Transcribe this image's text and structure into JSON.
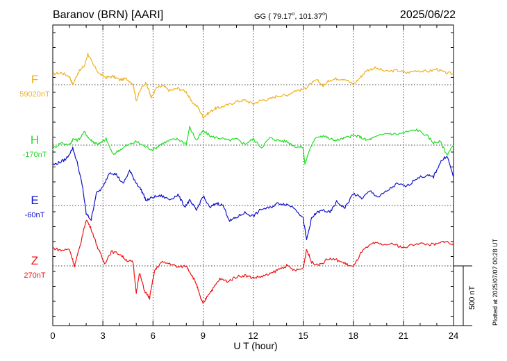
{
  "header": {
    "station": "Baranov (BRN)  [AARI]",
    "coords_prefix": "GG ( 79.17",
    "coords_mid": ", 101.37",
    "coords_suffix": ")",
    "degree_mark": "o",
    "date": "2025/06/22"
  },
  "footer": {
    "plotted": "Plotted at 2025/07/07 00:28 UT"
  },
  "colors": {
    "F": "#f0b020",
    "H": "#22dd22",
    "E": "#1010cc",
    "Z": "#ee1111",
    "axis": "#000000"
  },
  "chart_data": {
    "type": "line",
    "xlabel": "U T (hour)",
    "xlim": [
      0,
      24
    ],
    "x_ticks": [
      "0",
      "3",
      "6",
      "9",
      "12",
      "15",
      "18",
      "21",
      "24"
    ],
    "grid": true,
    "scale_bar": {
      "label": "500 nT",
      "value": 500
    },
    "series": [
      {
        "name": "F",
        "baseline_label": "59020nT",
        "baseline": 59020,
        "color": "#f0b020",
        "x": [
          0,
          0.5,
          1,
          1.2,
          1.5,
          1.9,
          2.1,
          2.4,
          2.8,
          3.2,
          3.6,
          4,
          4.4,
          4.8,
          5,
          5.3,
          5.6,
          5.9,
          6.2,
          6.6,
          7,
          7.5,
          8,
          8.3,
          8.7,
          9,
          9.3,
          9.7,
          10,
          10.5,
          11,
          11.5,
          12,
          12.5,
          13,
          13.5,
          14,
          14.5,
          15,
          15.4,
          15.8,
          16.2,
          16.6,
          17,
          17.5,
          18,
          18.4,
          18.8,
          19.3,
          20,
          20.6,
          21.2,
          21.8,
          22.4,
          23,
          23.5,
          24
        ],
        "y": [
          59110,
          59120,
          59090,
          59020,
          59120,
          59180,
          59280,
          59190,
          59110,
          59080,
          59090,
          59060,
          59070,
          59030,
          58890,
          58990,
          59040,
          58910,
          58990,
          59010,
          58970,
          58990,
          58960,
          58880,
          58830,
          58750,
          58780,
          58820,
          58830,
          58850,
          58880,
          58890,
          58860,
          58890,
          58900,
          58930,
          58930,
          58970,
          58980,
          59020,
          59060,
          59010,
          59060,
          59070,
          59070,
          59020,
          59080,
          59140,
          59160,
          59130,
          59140,
          59120,
          59140,
          59130,
          59150,
          59120,
          59110
        ]
      },
      {
        "name": "H",
        "baseline_label": "-170nT",
        "baseline": -170,
        "color": "#22dd22",
        "x": [
          0,
          0.5,
          1,
          1.2,
          1.5,
          1.9,
          2.2,
          2.5,
          2.8,
          3.2,
          3.6,
          4,
          4.5,
          5,
          5.5,
          6,
          6.5,
          7,
          7.5,
          8,
          8.2,
          8.6,
          9,
          9.5,
          10,
          10.5,
          11,
          11.5,
          12,
          12.5,
          13,
          13.5,
          14,
          14.5,
          15,
          15.1,
          15.4,
          15.8,
          16.2,
          16.6,
          17,
          17.5,
          18,
          18.4,
          18.8,
          19.2,
          20,
          20.6,
          21.2,
          21.8,
          22.4,
          22.8,
          23.2,
          23.6,
          24
        ],
        "y": [
          -200,
          -150,
          -170,
          -120,
          -130,
          -60,
          -120,
          -150,
          -160,
          -120,
          -250,
          -210,
          -170,
          -140,
          -180,
          -210,
          -160,
          -130,
          -120,
          -160,
          -20,
          -130,
          -50,
          -100,
          -110,
          -130,
          -120,
          -160,
          -120,
          -190,
          -110,
          -130,
          -140,
          -180,
          -190,
          -330,
          -200,
          -100,
          -90,
          -120,
          -130,
          -110,
          -90,
          -100,
          -130,
          -110,
          -70,
          -80,
          -60,
          -40,
          -90,
          -150,
          -140,
          -250,
          -170
        ]
      },
      {
        "name": "E",
        "baseline_label": "-60nT",
        "baseline": -60,
        "color": "#1010cc",
        "x": [
          0,
          0.4,
          0.8,
          1.2,
          1.5,
          1.8,
          2,
          2.3,
          2.6,
          3,
          3.4,
          3.8,
          4.2,
          4.6,
          5,
          5.3,
          5.6,
          6,
          6.5,
          7,
          7.5,
          7.9,
          8.2,
          8.6,
          9,
          9.4,
          9.8,
          10.2,
          10.6,
          11,
          11.5,
          12,
          12.5,
          13,
          13.5,
          14,
          14.5,
          15,
          15.2,
          15.5,
          15.8,
          16.2,
          16.6,
          17,
          17.5,
          18,
          18.5,
          19,
          19.5,
          20,
          20.6,
          21.2,
          21.8,
          22.4,
          22.8,
          23.2,
          23.6,
          24
        ],
        "y": [
          280,
          300,
          330,
          420,
          280,
          80,
          -130,
          -180,
          40,
          90,
          220,
          200,
          120,
          230,
          130,
          70,
          -20,
          10,
          20,
          -10,
          30,
          -70,
          -20,
          -100,
          20,
          -80,
          -40,
          -60,
          -190,
          -160,
          -120,
          -150,
          -90,
          -80,
          -40,
          -50,
          -80,
          -170,
          -350,
          -170,
          -120,
          -100,
          -120,
          -30,
          -80,
          40,
          0,
          60,
          10,
          60,
          120,
          100,
          170,
          190,
          180,
          300,
          360,
          180
        ]
      },
      {
        "name": "Z",
        "baseline_label": "270nT",
        "baseline": 270,
        "color": "#ee1111",
        "x": [
          0,
          0.5,
          1,
          1.3,
          1.6,
          2,
          2.3,
          2.7,
          3.1,
          3.5,
          4,
          4.4,
          4.8,
          5,
          5.2,
          5.5,
          5.8,
          6.1,
          6.5,
          7,
          7.5,
          8,
          8.3,
          8.6,
          8.8,
          9,
          9.3,
          9.6,
          10,
          10.5,
          11,
          11.5,
          12,
          12.5,
          13,
          13.5,
          14,
          14.5,
          15,
          15.2,
          15.5,
          16,
          16.5,
          17,
          17.5,
          18,
          18.5,
          19.2,
          19.7,
          20.5,
          21,
          21.8,
          22.5,
          23,
          23.5,
          24
        ],
        "y": [
          420,
          400,
          410,
          270,
          420,
          660,
          580,
          420,
          290,
          390,
          370,
          320,
          300,
          50,
          210,
          60,
          0,
          230,
          300,
          290,
          260,
          270,
          200,
          120,
          20,
          -50,
          30,
          80,
          160,
          140,
          180,
          190,
          170,
          180,
          200,
          240,
          270,
          230,
          250,
          410,
          300,
          280,
          330,
          320,
          290,
          260,
          390,
          460,
          450,
          450,
          420,
          460,
          450,
          450,
          480,
          440
        ]
      }
    ],
    "vertical_scale_nT_per_unit": "500 nT per gap"
  }
}
